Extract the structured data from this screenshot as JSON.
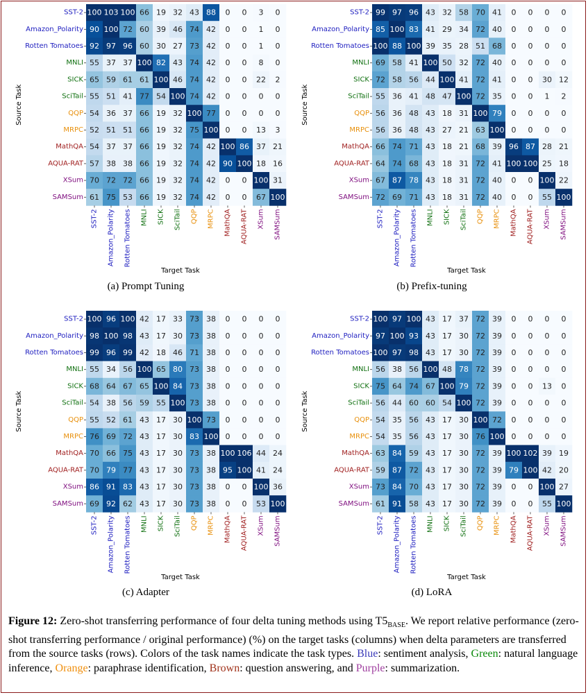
{
  "tasks": [
    "SST-2",
    "Amazon_Polarity",
    "Rotten Tomatoes",
    "MNLI",
    "SICK",
    "SciTail",
    "QQP",
    "MRPC",
    "MathQA",
    "AQUA-RAT",
    "XSum",
    "SAMSum"
  ],
  "task_colors": [
    "#2020c0",
    "#2020c0",
    "#2020c0",
    "#107010",
    "#107010",
    "#107010",
    "#e8900c",
    "#e8900c",
    "#a02020",
    "#a02020",
    "#801080",
    "#801080"
  ],
  "axis": {
    "x_title": "Target Task",
    "y_title": "Source Task"
  },
  "chart_data": [
    {
      "type": "heatmap",
      "title": "(a) Prompt Tuning",
      "xlabel": "Target Task",
      "ylabel": "Source Task",
      "rows": [
        "SST-2",
        "Amazon_Polarity",
        "Rotten Tomatoes",
        "MNLI",
        "SICK",
        "SciTail",
        "QQP",
        "MRPC",
        "MathQA",
        "AQUA-RAT",
        "XSum",
        "SAMSum"
      ],
      "cols": [
        "SST-2",
        "Amazon_Polarity",
        "Rotten Tomatoes",
        "MNLI",
        "SICK",
        "SciTail",
        "QQP",
        "MRPC",
        "MathQA",
        "AQUA-RAT",
        "XSum",
        "SAMSum"
      ],
      "values": [
        [
          100,
          103,
          100,
          66,
          19,
          32,
          43,
          88,
          0,
          0,
          3,
          0
        ],
        [
          90,
          100,
          72,
          60,
          39,
          46,
          74,
          42,
          0,
          0,
          1,
          0
        ],
        [
          92,
          97,
          96,
          60,
          30,
          27,
          73,
          42,
          0,
          0,
          1,
          0
        ],
        [
          55,
          37,
          37,
          100,
          82,
          43,
          74,
          42,
          0,
          0,
          8,
          0
        ],
        [
          65,
          59,
          61,
          61,
          100,
          46,
          74,
          42,
          0,
          0,
          22,
          2
        ],
        [
          55,
          51,
          41,
          77,
          54,
          100,
          74,
          42,
          0,
          0,
          0,
          0
        ],
        [
          54,
          36,
          37,
          66,
          19,
          32,
          100,
          77,
          0,
          0,
          0,
          0
        ],
        [
          52,
          51,
          51,
          66,
          19,
          32,
          75,
          100,
          0,
          0,
          13,
          3
        ],
        [
          54,
          37,
          37,
          66,
          19,
          32,
          74,
          42,
          100,
          86,
          37,
          21
        ],
        [
          57,
          38,
          38,
          66,
          19,
          32,
          74,
          42,
          90,
          100,
          18,
          16
        ],
        [
          70,
          72,
          72,
          66,
          19,
          32,
          74,
          42,
          0,
          0,
          100,
          31
        ],
        [
          61,
          75,
          53,
          66,
          19,
          32,
          74,
          42,
          0,
          0,
          67,
          100
        ]
      ]
    },
    {
      "type": "heatmap",
      "title": "(b) Prefix-tuning",
      "xlabel": "Target Task",
      "ylabel": "Source Task",
      "rows": [
        "SST-2",
        "Amazon_Polarity",
        "Rotten Tomatoes",
        "MNLI",
        "SICK",
        "SciTail",
        "QQP",
        "MRPC",
        "MathQA",
        "AQUA-RAT",
        "XSum",
        "SAMSum"
      ],
      "cols": [
        "SST-2",
        "Amazon_Polarity",
        "Rotten Tomatoes",
        "MNLI",
        "SICK",
        "SciTail",
        "QQP",
        "MRPC",
        "MathQA",
        "AQUA-RAT",
        "XSum",
        "SAMSum"
      ],
      "values": [
        [
          99,
          97,
          96,
          43,
          32,
          58,
          70,
          41,
          0,
          0,
          0,
          0
        ],
        [
          85,
          100,
          83,
          41,
          29,
          34,
          72,
          40,
          0,
          0,
          0,
          0
        ],
        [
          100,
          88,
          100,
          39,
          35,
          28,
          51,
          68,
          0,
          0,
          0,
          0
        ],
        [
          69,
          58,
          41,
          100,
          50,
          32,
          72,
          40,
          0,
          0,
          0,
          0
        ],
        [
          72,
          58,
          56,
          44,
          100,
          41,
          72,
          41,
          0,
          0,
          30,
          12
        ],
        [
          55,
          36,
          41,
          48,
          47,
          100,
          72,
          35,
          0,
          0,
          1,
          2
        ],
        [
          56,
          36,
          48,
          43,
          18,
          31,
          100,
          79,
          0,
          0,
          0,
          0
        ],
        [
          56,
          36,
          48,
          43,
          27,
          21,
          63,
          100,
          0,
          0,
          0,
          0
        ],
        [
          66,
          74,
          71,
          43,
          18,
          21,
          68,
          39,
          96,
          87,
          28,
          21
        ],
        [
          64,
          74,
          68,
          43,
          18,
          31,
          72,
          41,
          100,
          100,
          25,
          18
        ],
        [
          67,
          87,
          78,
          43,
          18,
          31,
          72,
          40,
          0,
          0,
          100,
          22
        ],
        [
          72,
          69,
          71,
          43,
          18,
          31,
          72,
          40,
          0,
          0,
          55,
          100
        ]
      ]
    },
    {
      "type": "heatmap",
      "title": "(c) Adapter",
      "xlabel": "Target Task",
      "ylabel": "Source Task",
      "rows": [
        "SST-2",
        "Amazon_Polarity",
        "Rotten Tomatoes",
        "MNLI",
        "SICK",
        "SciTail",
        "QQP",
        "MRPC",
        "MathQA",
        "AQUA-RAT",
        "XSum",
        "SAMSum"
      ],
      "cols": [
        "SST-2",
        "Amazon_Polarity",
        "Rotten Tomatoes",
        "MNLI",
        "SICK",
        "SciTail",
        "QQP",
        "MRPC",
        "MathQA",
        "AQUA-RAT",
        "XSum",
        "SAMSum"
      ],
      "values": [
        [
          100,
          96,
          100,
          42,
          17,
          33,
          73,
          38,
          0,
          0,
          0,
          0
        ],
        [
          98,
          100,
          98,
          43,
          17,
          30,
          73,
          38,
          0,
          0,
          0,
          0
        ],
        [
          99,
          96,
          99,
          42,
          18,
          46,
          71,
          38,
          0,
          0,
          0,
          0
        ],
        [
          55,
          34,
          56,
          100,
          65,
          80,
          73,
          38,
          0,
          0,
          0,
          0
        ],
        [
          68,
          64,
          67,
          65,
          100,
          84,
          73,
          38,
          0,
          0,
          0,
          0
        ],
        [
          54,
          38,
          56,
          59,
          55,
          100,
          73,
          38,
          0,
          0,
          0,
          0
        ],
        [
          55,
          52,
          61,
          43,
          17,
          30,
          100,
          73,
          0,
          0,
          0,
          0
        ],
        [
          76,
          69,
          72,
          43,
          17,
          30,
          83,
          100,
          0,
          0,
          0,
          0
        ],
        [
          70,
          66,
          75,
          43,
          17,
          30,
          73,
          38,
          100,
          106,
          44,
          24
        ],
        [
          70,
          79,
          77,
          43,
          17,
          30,
          73,
          38,
          95,
          100,
          41,
          24
        ],
        [
          86,
          91,
          83,
          43,
          17,
          30,
          73,
          38,
          0,
          0,
          100,
          36
        ],
        [
          69,
          92,
          62,
          43,
          17,
          30,
          73,
          38,
          0,
          0,
          53,
          100
        ]
      ]
    },
    {
      "type": "heatmap",
      "title": "(d) LoRA",
      "xlabel": "Target Task",
      "ylabel": "Source Task",
      "rows": [
        "SST-2",
        "Amazon_Polarity",
        "Rotten Tomatoes",
        "MNLI",
        "SICK",
        "SciTail",
        "QQP",
        "MRPC",
        "MathQA",
        "AQUA-RAT",
        "XSum",
        "SAMSum"
      ],
      "cols": [
        "SST-2",
        "Amazon_Polarity",
        "Rotten Tomatoes",
        "MNLI",
        "SICK",
        "SciTail",
        "QQP",
        "MRPC",
        "MathQA",
        "AQUA-RAT",
        "XSum",
        "SAMSum"
      ],
      "values": [
        [
          100,
          97,
          100,
          43,
          17,
          37,
          72,
          39,
          0,
          0,
          0,
          0
        ],
        [
          97,
          100,
          93,
          43,
          17,
          30,
          72,
          39,
          0,
          0,
          0,
          0
        ],
        [
          100,
          97,
          98,
          43,
          17,
          30,
          72,
          39,
          0,
          0,
          0,
          0
        ],
        [
          56,
          38,
          56,
          100,
          48,
          78,
          72,
          39,
          0,
          0,
          0,
          0
        ],
        [
          75,
          64,
          74,
          67,
          100,
          79,
          72,
          39,
          0,
          0,
          13,
          0
        ],
        [
          56,
          44,
          60,
          60,
          54,
          100,
          72,
          39,
          0,
          0,
          0,
          0
        ],
        [
          54,
          35,
          56,
          43,
          17,
          30,
          100,
          72,
          0,
          0,
          0,
          0
        ],
        [
          54,
          35,
          56,
          43,
          17,
          30,
          76,
          100,
          0,
          0,
          0,
          0
        ],
        [
          63,
          84,
          59,
          43,
          17,
          30,
          72,
          39,
          100,
          102,
          39,
          19
        ],
        [
          59,
          87,
          72,
          43,
          17,
          30,
          72,
          39,
          79,
          100,
          42,
          20
        ],
        [
          73,
          84,
          70,
          43,
          17,
          30,
          72,
          39,
          0,
          0,
          100,
          27
        ],
        [
          61,
          91,
          58,
          43,
          17,
          30,
          72,
          39,
          0,
          0,
          55,
          100
        ]
      ]
    }
  ],
  "figure_caption": {
    "label": "Figure 12:",
    "text_part1": " Zero-shot transferring performance of four delta tuning methods using T5",
    "subscript": "BASE",
    "text_part2": ". We report relative performance (zero-shot transferring performance / original performance) (%) on the target tasks (columns) when delta parameters are transferred from the source tasks (rows). Colors of the task names indicate the task types. ",
    "blue_word": "Blue",
    "blue_desc": ": sentiment analysis, ",
    "green_word": "Green",
    "green_desc": ": natural language inference, ",
    "orange_word": "Orange",
    "orange_desc": ": paraphrase identification, ",
    "brown_word": "Brown",
    "brown_desc": ": question answering, and ",
    "purple_word": "Purple",
    "purple_desc": ": summarization."
  }
}
